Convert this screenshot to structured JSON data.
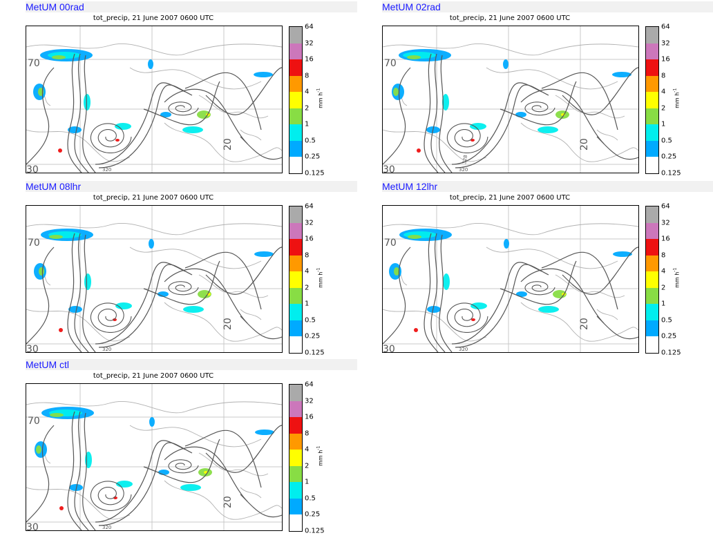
{
  "panels": [
    {
      "label": "MetUM 00rad",
      "subtitle": "tot_precip, 21 June 2007 0600 UTC"
    },
    {
      "label": "MetUM 02rad",
      "subtitle": "tot_precip, 21 June 2007 0600 UTC"
    },
    {
      "label": "MetUM 08lhr",
      "subtitle": "tot_precip, 21 June 2007 0600 UTC"
    },
    {
      "label": "MetUM 12lhr",
      "subtitle": "tot_precip, 21 June 2007 0600 UTC"
    },
    {
      "label": "MetUM ctl",
      "subtitle": "tot_precip, 21 June 2007 0600 UTC"
    }
  ],
  "colorbar": {
    "unit": "mm h",
    "unit_exponent": "-1",
    "levels": [
      "64",
      "32",
      "16",
      "8",
      "4",
      "2",
      "1",
      "0.5",
      "0.25",
      "0.125"
    ],
    "colors": [
      "#aaaaaa",
      "#cc77bb",
      "#ee1111",
      "#ff9900",
      "#ffff00",
      "#88dd44",
      "#00eeee",
      "#00aaff",
      "#ffffff"
    ]
  },
  "map": {
    "latitude_labels": [
      "70",
      "20",
      "30"
    ],
    "contour_labels": [
      "320",
      "328"
    ],
    "precip_colors": [
      "#00aaff",
      "#00eeee",
      "#88dd44",
      "#ffff00",
      "#ee1111"
    ],
    "contour_color": "#555555",
    "coast_color": "#b0b0b0",
    "grid_color": "#c8c8c8"
  }
}
